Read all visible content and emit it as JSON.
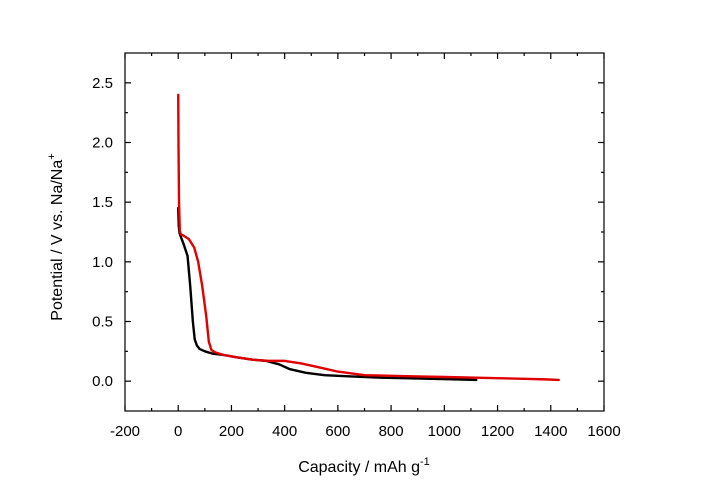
{
  "chart_data": {
    "type": "line",
    "title": "",
    "xlabel": "Capacity / mAh g",
    "xlabel_sup": "-1",
    "ylabel": "Potential / V vs. Na/Na",
    "ylabel_sup": "+",
    "xlim": [
      -200,
      1600
    ],
    "ylim": [
      -0.25,
      2.75
    ],
    "xticks": [
      -200,
      0,
      200,
      400,
      600,
      800,
      1000,
      1200,
      1400,
      1600
    ],
    "yticks": [
      0.0,
      0.5,
      1.0,
      1.5,
      2.0,
      2.5
    ],
    "xtick_labels": [
      "-200",
      "0",
      "200",
      "400",
      "600",
      "800",
      "1000",
      "1200",
      "1400",
      "1600"
    ],
    "ytick_labels": [
      "0.0",
      "0.5",
      "1.0",
      "1.5",
      "2.0",
      "2.5"
    ],
    "grid": false,
    "legend": "none",
    "series": [
      {
        "color": "#000000",
        "x": [
          0,
          2,
          5,
          10,
          20,
          35,
          45,
          55,
          62,
          70,
          80,
          100,
          130,
          170,
          220,
          280,
          330,
          380,
          420,
          480,
          550,
          650,
          750,
          850,
          950,
          1050,
          1120
        ],
        "y": [
          1.45,
          1.3,
          1.24,
          1.21,
          1.15,
          1.05,
          0.8,
          0.5,
          0.35,
          0.3,
          0.27,
          0.25,
          0.23,
          0.22,
          0.2,
          0.18,
          0.17,
          0.14,
          0.1,
          0.07,
          0.05,
          0.04,
          0.03,
          0.025,
          0.02,
          0.015,
          0.01
        ]
      },
      {
        "color": "#e00000",
        "x": [
          0,
          1,
          3,
          6,
          10,
          20,
          40,
          60,
          75,
          90,
          105,
          115,
          125,
          140,
          170,
          220,
          280,
          340,
          400,
          460,
          520,
          600,
          700,
          800,
          900,
          1000,
          1100,
          1200,
          1300,
          1380,
          1430
        ],
        "y": [
          2.4,
          2.0,
          1.5,
          1.26,
          1.23,
          1.22,
          1.19,
          1.12,
          1.0,
          0.8,
          0.55,
          0.33,
          0.26,
          0.24,
          0.22,
          0.2,
          0.18,
          0.17,
          0.17,
          0.15,
          0.12,
          0.08,
          0.05,
          0.045,
          0.04,
          0.035,
          0.03,
          0.025,
          0.02,
          0.015,
          0.01
        ]
      }
    ]
  }
}
